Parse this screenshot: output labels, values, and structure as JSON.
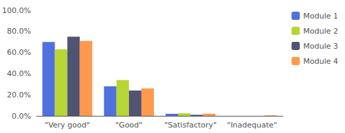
{
  "chart_data": {
    "type": "bar",
    "categories": [
      "\"Very good\"",
      "\"Good\"",
      "\"Satisfactory\"",
      "\"Inadequate\""
    ],
    "series": [
      {
        "name": "Module 1",
        "values": [
          70.0,
          28.0,
          2.0,
          0.0
        ]
      },
      {
        "name": "Module 2",
        "values": [
          63.0,
          34.0,
          2.5,
          0.0
        ]
      },
      {
        "name": "Module 3",
        "values": [
          75.0,
          24.0,
          1.0,
          0.0
        ]
      },
      {
        "name": "Module 4",
        "values": [
          71.0,
          26.0,
          2.0,
          0.5
        ]
      }
    ],
    "ylim": [
      0,
      100
    ],
    "yticks": [
      {
        "value": 0,
        "label": "0.0%"
      },
      {
        "value": 20,
        "label": "20.0%"
      },
      {
        "value": 40,
        "label": "40.0%"
      },
      {
        "value": 60,
        "label": "60.0%"
      },
      {
        "value": 80,
        "label": "80.0%"
      },
      {
        "value": 100,
        "label": "100.0%"
      }
    ],
    "grid": false,
    "legend": "right"
  }
}
